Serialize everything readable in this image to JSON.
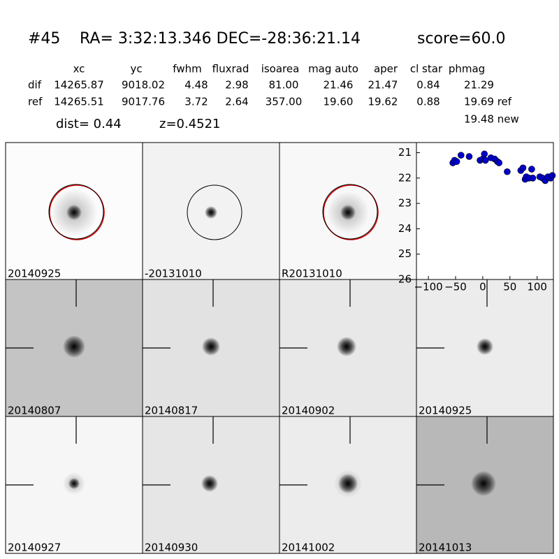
{
  "header": {
    "id": "#45",
    "coords": "RA= 3:32:13.346 DEC=-28:36:21.14",
    "score": "score=60.0"
  },
  "table": {
    "columns": [
      "xc",
      "yc",
      "fwhm",
      "fluxrad",
      "isoarea",
      "mag auto",
      "aper",
      "cl star",
      "phmag"
    ],
    "rows": [
      [
        "dif",
        "14265.87",
        "9018.02",
        "4.48",
        "2.98",
        "81.00",
        "21.46",
        "21.47",
        "0.84",
        "21.29"
      ],
      [
        "ref",
        "14265.51",
        "9017.76",
        "3.72",
        "2.64",
        "357.00",
        "19.60",
        "19.62",
        "0.88",
        "19.69 ref"
      ]
    ],
    "extra": "19.48 new"
  },
  "info": {
    "dist": "dist=  0.44",
    "z": "z=0.4521"
  },
  "stamps": [
    "20140925",
    "-20131010",
    "R20131010",
    "20140807",
    "20140817",
    "20140902",
    "20140925",
    "20140927",
    "20140930",
    "20141002",
    "20141013"
  ],
  "chart_data": {
    "type": "scatter",
    "color": "#0000cc",
    "y_inverted": true,
    "x": [
      -55,
      -52,
      -48,
      -40,
      -25,
      -5,
      0,
      3,
      5,
      15,
      22,
      27,
      30,
      45,
      70,
      74,
      78,
      80,
      85,
      90,
      92,
      105,
      110,
      115,
      120,
      125,
      128
    ],
    "y": [
      21.4,
      21.3,
      21.35,
      21.1,
      21.15,
      21.3,
      21.25,
      21.05,
      21.3,
      21.2,
      21.25,
      21.35,
      21.4,
      21.75,
      21.7,
      21.6,
      22.05,
      21.95,
      22.0,
      21.65,
      22.0,
      21.95,
      22.0,
      22.1,
      21.95,
      22.0,
      21.9
    ],
    "xlim": [
      -122,
      130
    ],
    "ylim": [
      20.6,
      26
    ],
    "xticks": [
      {
        "value": -100,
        "label": "−100"
      },
      {
        "value": -50,
        "label": "−50"
      },
      0,
      50,
      100
    ],
    "yticks": [
      21,
      22,
      23,
      24,
      25,
      26
    ]
  }
}
